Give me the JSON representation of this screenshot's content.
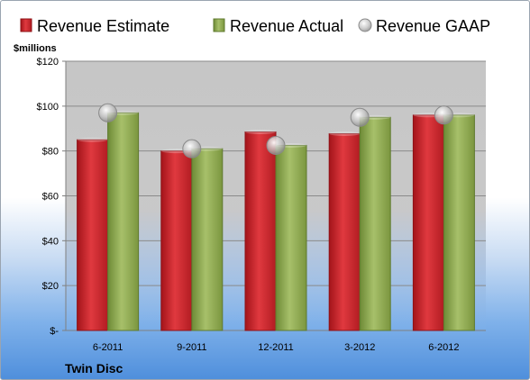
{
  "chart_data": {
    "type": "bar",
    "ylabel": "$millions",
    "company": "Twin Disc",
    "categories": [
      "6-2011",
      "9-2011",
      "12-2011",
      "3-2012",
      "6-2012"
    ],
    "series": [
      {
        "name": "Revenue Estimate",
        "kind": "bar",
        "color": "#d0282e",
        "values": [
          85,
          80,
          88.5,
          87.7,
          96
        ]
      },
      {
        "name": "Revenue Actual",
        "kind": "bar",
        "color": "#8ca650",
        "values": [
          97,
          81,
          82.5,
          95,
          96
        ]
      },
      {
        "name": "Revenue GAAP",
        "kind": "marker",
        "color": "#c8c8c8",
        "values": [
          97,
          81,
          82.5,
          95,
          96
        ]
      }
    ],
    "ylim": [
      0,
      120
    ],
    "yticks": [
      0,
      20,
      40,
      60,
      80,
      100,
      120
    ],
    "ytick_labels": [
      "$-",
      "$20",
      "$40",
      "$60",
      "$80",
      "$100",
      "$120"
    ],
    "grid": true,
    "legend_position": "top"
  }
}
